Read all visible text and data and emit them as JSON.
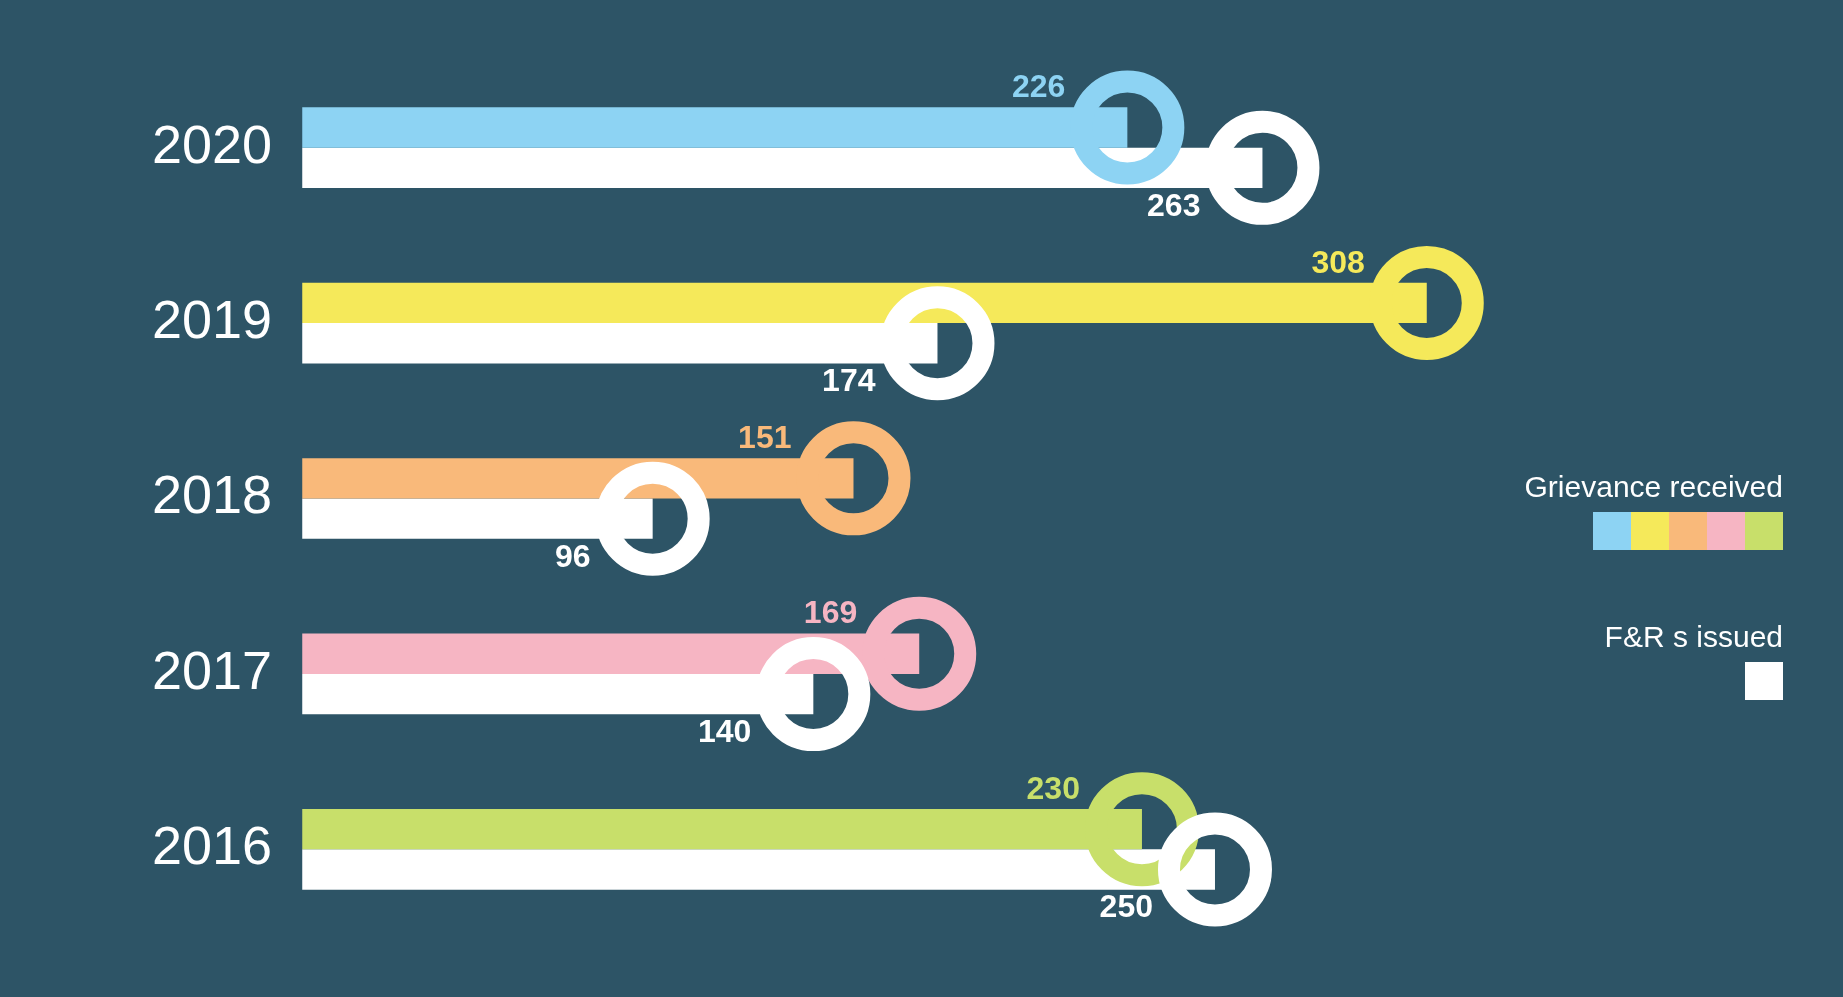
{
  "chart_data": {
    "type": "bar",
    "orientation": "horizontal",
    "categories": [
      "2020",
      "2019",
      "2018",
      "2017",
      "2016"
    ],
    "series": [
      {
        "name": "Grievance received",
        "colors": [
          "#8dd3f3",
          "#f5e95a",
          "#f9b97a",
          "#f6b5c3",
          "#c8df6a"
        ],
        "values": [
          226,
          308,
          151,
          169,
          230
        ]
      },
      {
        "name": "F&R s issued",
        "color": "#ffffff",
        "values": [
          263,
          174,
          96,
          140,
          250
        ]
      }
    ],
    "data_labels": true,
    "legend": "right",
    "tick_labels": "y"
  }
}
